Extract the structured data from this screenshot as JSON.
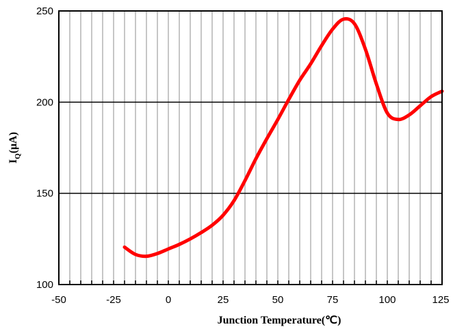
{
  "chart_data": {
    "type": "line",
    "title": "",
    "xlabel": "Junction Temperature(℃)",
    "ylabel": "I",
    "ylabel_subscript": "Q",
    "ylabel_suffix": "(μA)",
    "xlim": [
      -50,
      125
    ],
    "ylim": [
      100,
      250
    ],
    "x_ticks": [
      -50,
      -25,
      0,
      25,
      50,
      75,
      100,
      125
    ],
    "x_tick_labels": [
      "-50",
      "-25",
      "0",
      "25",
      "50",
      "75",
      "100",
      "125"
    ],
    "y_ticks": [
      100,
      150,
      200,
      250
    ],
    "y_tick_labels": [
      "100",
      "150",
      "200",
      "250"
    ],
    "vertical_grid_step": 5,
    "horizontal_grid": [
      150,
      200
    ],
    "grid": true,
    "legend": "none",
    "series": [
      {
        "color": "#ff0000",
        "x": [
          -20,
          -15,
          -10,
          -5,
          0,
          5,
          10,
          15,
          20,
          25,
          30,
          35,
          40,
          45,
          50,
          55,
          60,
          65,
          70,
          75,
          80,
          85,
          90,
          95,
          100,
          105,
          110,
          115,
          120,
          125
        ],
        "y": [
          120.5,
          116.5,
          115.5,
          117,
          119.5,
          122,
          125,
          128.5,
          132.5,
          138,
          146,
          157,
          169,
          180,
          190.5,
          201.5,
          212,
          221,
          231,
          240,
          245.5,
          243,
          229,
          210,
          194,
          190.5,
          193,
          198,
          203,
          206
        ]
      }
    ]
  }
}
